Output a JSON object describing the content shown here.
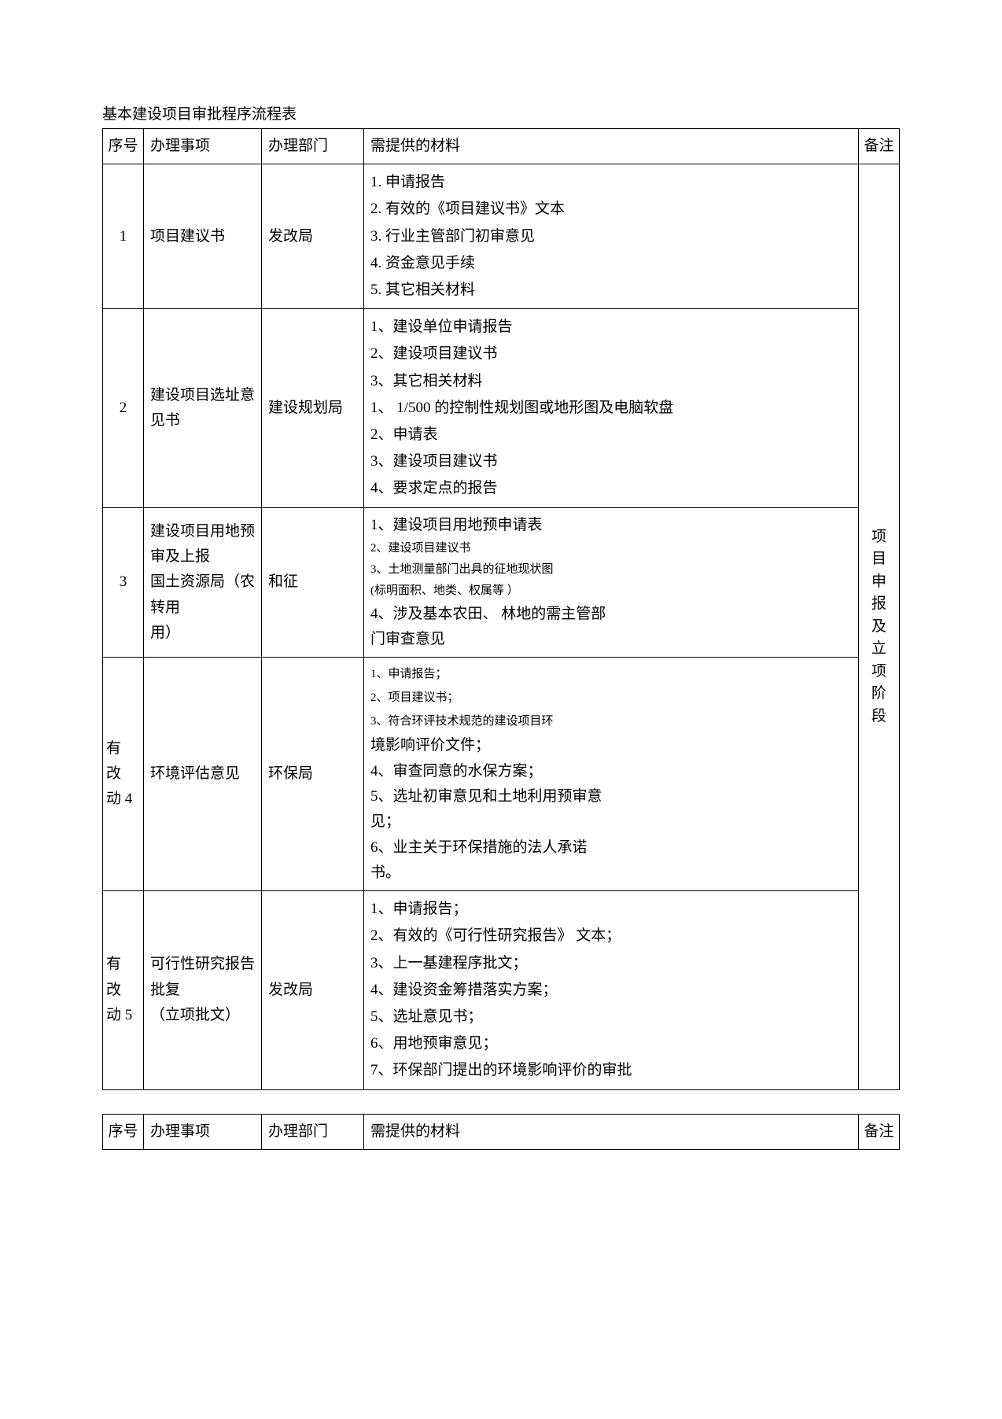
{
  "title": "基本建设项目审批程序流程表",
  "headers": {
    "seq": "序号",
    "item": "办理事项",
    "dept": "办理部门",
    "materials": "需提供的材料",
    "note": "备注"
  },
  "rows": [
    {
      "seq": "1",
      "item": "项目建议书",
      "dept": "发改局",
      "materials_style": "dot",
      "materials": [
        "1.   申请报告",
        "2.   有效的《项目建议书》文本",
        "3.   行业主管部门初审意见",
        "4.   资金意见手续",
        "5.   其它相关材料"
      ]
    },
    {
      "seq": "2",
      "item": "建设项目选址意见书",
      "dept": "建设规划局",
      "materials_style": "cn",
      "materials": [
        "1、建设单位申请报告",
        "2、建设项目建议书",
        "3、其它相关材料",
        "1、 1/500 的控制性规划图或地形图及电脑软盘",
        "2、申请表",
        "3、建设项目建议书",
        "4、要求定点的报告"
      ]
    },
    {
      "seq": "3",
      "item_lines": [
        "建设项目用地预",
        "审及上报",
        "国土资源局（农转用",
        "用）"
      ],
      "dept_lines": [
        "",
        "",
        "和征",
        ""
      ],
      "materials_style": "mixed3",
      "materials": [
        {
          "text": "1、建设项目用地预申请表",
          "size": "normal"
        },
        {
          "text": "2、建设项目建议书",
          "size": "small"
        },
        {
          "text": "3、土地测量部门出具的征地现状图",
          "size": "small"
        },
        {
          "text": "(标明面积、地类、权属等                   ）",
          "size": "small"
        },
        {
          "text": "4、涉及基本农田、 林地的需主管部",
          "size": "normal"
        },
        {
          "text": "门审查意见",
          "size": "normal"
        }
      ]
    },
    {
      "seq_lines": [
        "有",
        "改",
        "动 4"
      ],
      "item": "环境评估意见",
      "dept": "环保局",
      "materials_style": "mixed4",
      "materials": [
        {
          "text": "1、申请报告；",
          "size": "small2"
        },
        {
          "text": "2、项目建议书；",
          "size": "small2"
        },
        {
          "text": "3、符合环评技术规范的建设项目环",
          "size": "small2"
        },
        {
          "text": "境影响评价文件；",
          "size": "normal"
        },
        {
          "text": "4、审查同意的水保方案；",
          "size": "normal"
        },
        {
          "text": "5、选址初审意见和土地利用预审意",
          "size": "normal"
        },
        {
          "text": "见；",
          "size": "normal"
        },
        {
          "text": "6、业主关于环保措施的法人承诺",
          "size": "normal"
        },
        {
          "text": "书。",
          "size": "normal"
        }
      ]
    },
    {
      "seq_lines": [
        "有",
        "改",
        "动 5"
      ],
      "item_lines2": [
        "可行性研究报告",
        "批复",
        "（立项批文）"
      ],
      "dept": "发改局",
      "materials_style": "cn",
      "materials": [
        "1、申请报告；",
        "2、有效的《可行性研究报告》   文本；",
        "3、上一基建程序批文；",
        "4、建设资金筹措落实方案；",
        "5、选址意见书；",
        "6、用地预审意见；",
        "7、环保部门提出的环境影响评价的审批"
      ]
    }
  ],
  "note_vertical": [
    "项",
    "目",
    "申",
    "报",
    "及",
    "立",
    "项",
    "阶",
    "段"
  ]
}
